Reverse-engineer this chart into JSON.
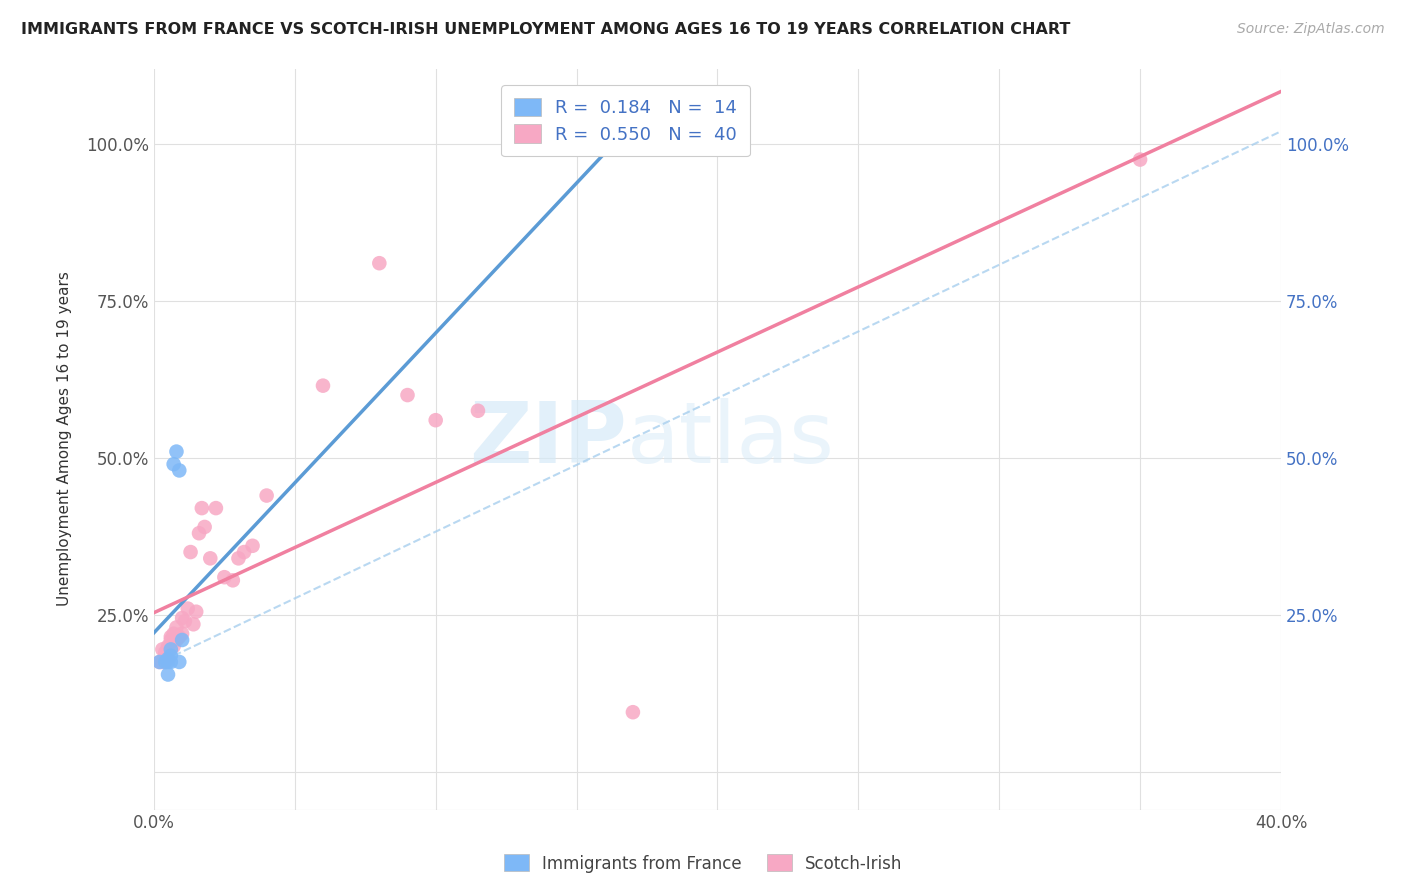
{
  "title": "IMMIGRANTS FROM FRANCE VS SCOTCH-IRISH UNEMPLOYMENT AMONG AGES 16 TO 19 YEARS CORRELATION CHART",
  "source": "Source: ZipAtlas.com",
  "ylabel": "Unemployment Among Ages 16 to 19 years",
  "xlim": [
    0.0,
    0.4
  ],
  "ylim": [
    -0.06,
    1.12
  ],
  "xticks": [
    0.0,
    0.05,
    0.1,
    0.15,
    0.2,
    0.25,
    0.3,
    0.35,
    0.4
  ],
  "xticklabels": [
    "0.0%",
    "",
    "",
    "",
    "",
    "",
    "",
    "",
    "40.0%"
  ],
  "yticks": [
    0.0,
    0.25,
    0.5,
    0.75,
    1.0
  ],
  "yticklabels": [
    "",
    "25.0%",
    "50.0%",
    "75.0%",
    "100.0%"
  ],
  "legend_R1": "0.184",
  "legend_N1": "14",
  "legend_R2": "0.550",
  "legend_N2": "40",
  "color_france": "#7EB8F7",
  "color_scotch": "#F7A8C4",
  "color_france_line": "#5B9BD5",
  "color_scotch_line": "#F080A0",
  "color_dash": "#A8CFEE",
  "watermark_color": "#D6EAF8",
  "france_x": [
    0.002,
    0.004,
    0.005,
    0.005,
    0.005,
    0.006,
    0.006,
    0.006,
    0.007,
    0.008,
    0.009,
    0.009,
    0.01,
    0.165
  ],
  "france_y": [
    0.175,
    0.175,
    0.155,
    0.175,
    0.18,
    0.175,
    0.185,
    0.195,
    0.49,
    0.51,
    0.175,
    0.48,
    0.21,
    1.0
  ],
  "scotch_x": [
    0.002,
    0.003,
    0.003,
    0.004,
    0.004,
    0.005,
    0.005,
    0.005,
    0.006,
    0.006,
    0.007,
    0.007,
    0.008,
    0.008,
    0.009,
    0.01,
    0.01,
    0.011,
    0.012,
    0.013,
    0.014,
    0.015,
    0.016,
    0.017,
    0.018,
    0.02,
    0.022,
    0.025,
    0.028,
    0.03,
    0.032,
    0.035,
    0.04,
    0.06,
    0.08,
    0.09,
    0.1,
    0.115,
    0.17,
    0.35
  ],
  "scotch_y": [
    0.175,
    0.175,
    0.195,
    0.175,
    0.19,
    0.18,
    0.195,
    0.2,
    0.21,
    0.215,
    0.2,
    0.22,
    0.21,
    0.23,
    0.215,
    0.22,
    0.245,
    0.24,
    0.26,
    0.35,
    0.235,
    0.255,
    0.38,
    0.42,
    0.39,
    0.34,
    0.42,
    0.31,
    0.305,
    0.34,
    0.35,
    0.36,
    0.44,
    0.615,
    0.81,
    0.6,
    0.56,
    0.575,
    0.095,
    0.975
  ],
  "background_color": "#FFFFFF",
  "grid_color": "#E0E0E0"
}
